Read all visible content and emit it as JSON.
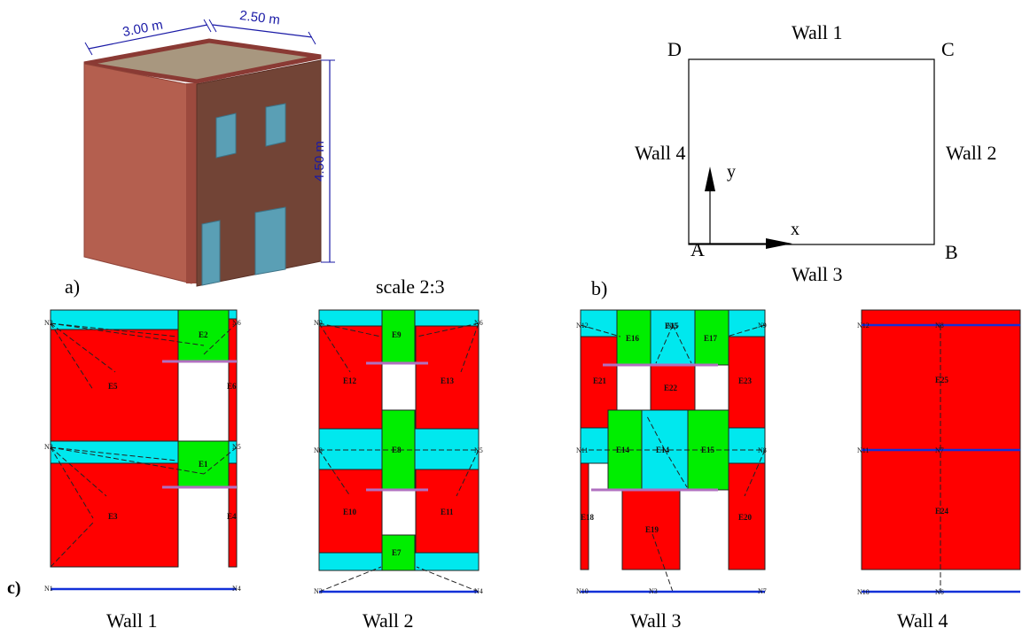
{
  "panel_a": {
    "dim_width": "3.00 m",
    "dim_depth": "2.50 m",
    "dim_height": "4.50 m",
    "label": "a)",
    "scale": "scale 2:3"
  },
  "panel_b": {
    "label": "b)",
    "corners": {
      "A": "A",
      "B": "B",
      "C": "C",
      "D": "D"
    },
    "walls": {
      "w1": "Wall 1",
      "w2": "Wall 2",
      "w3": "Wall 3",
      "w4": "Wall 4"
    },
    "axis_x": "x",
    "axis_y": "y"
  },
  "panel_c": {
    "label": "c)",
    "captions": [
      "Wall 1",
      "Wall 2",
      "Wall 3",
      "Wall 4"
    ],
    "wall1": {
      "elements": [
        "E2",
        "E5",
        "E6",
        "E1",
        "E3",
        "E4"
      ],
      "nodes": [
        "N2",
        "N6",
        "N3",
        "N5",
        "N1",
        "N4"
      ]
    },
    "wall2": {
      "elements": [
        "E9",
        "E12",
        "E13",
        "E8",
        "E10",
        "E11",
        "E7"
      ],
      "nodes": [
        "N9",
        "N6",
        "N8",
        "N5",
        "N3",
        "N4"
      ]
    },
    "wall3": {
      "elements": [
        "E16",
        "E15",
        "E17",
        "E21",
        "E22",
        "E23",
        "E14",
        "E14",
        "E15",
        "E18",
        "E19",
        "E20"
      ],
      "nodes": [
        "N12",
        "N15",
        "N9",
        "N11",
        "N8",
        "N10",
        "N3",
        "N7"
      ]
    },
    "wall4": {
      "elements": [
        "E25",
        "E24"
      ],
      "nodes": [
        "N12",
        "N8",
        "N11",
        "N7",
        "N10",
        "N6"
      ]
    }
  },
  "colors": {
    "pier": "#ff0000",
    "spandrel": "#00e8ee",
    "rigid": "#00ee00",
    "beam": "#1230d8"
  }
}
